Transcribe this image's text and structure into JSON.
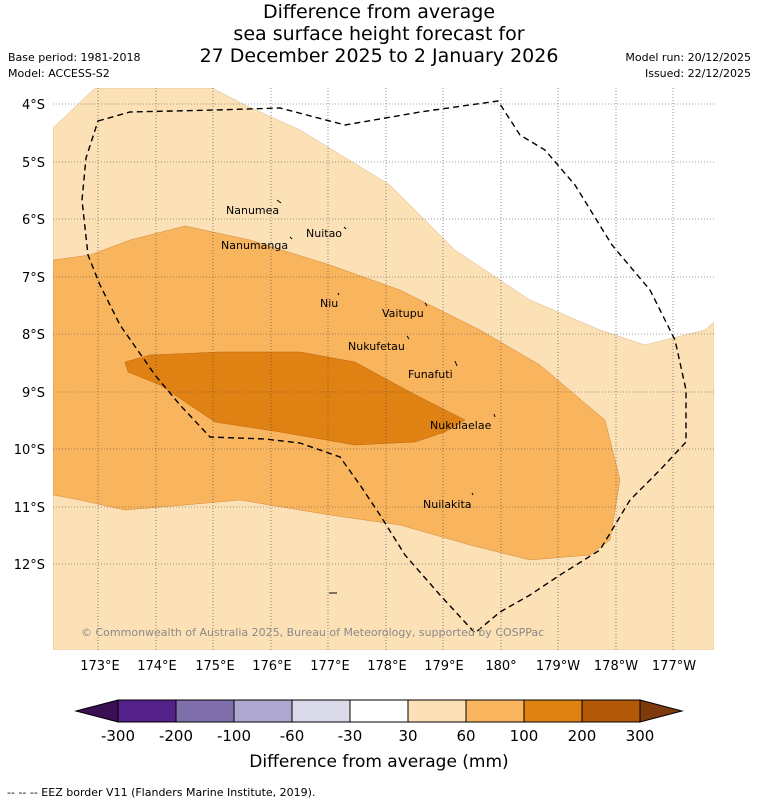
{
  "header": {
    "title_lines": [
      "Difference from average",
      "sea surface height forecast for",
      "27 December 2025 to 2 January 2026"
    ],
    "base_period": "Base period: 1981-2018",
    "model": "Model: ACCESS-S2",
    "model_run": "Model run: 20/12/2025",
    "issued": "Issued: 22/12/2025"
  },
  "map": {
    "lat_labels": [
      "4°S",
      "5°S",
      "6°S",
      "7°S",
      "8°S",
      "9°S",
      "10°S",
      "11°S",
      "12°S"
    ],
    "lon_labels": [
      "173°E",
      "174°E",
      "175°E",
      "176°E",
      "177°E",
      "178°E",
      "179°E",
      "180°",
      "179°W",
      "178°W",
      "177°W"
    ],
    "places": [
      "Nanumea",
      "Nuitao",
      "Nanumanga",
      "Niu",
      "Vaitupu",
      "Nukufetau",
      "Funafuti",
      "Nukulaelae",
      "Nuilakita"
    ],
    "copyright": "© Commonwealth of Australia 2025, Bureau of Meteorology, supported by COSPPac"
  },
  "colorbar": {
    "labels": [
      "-300",
      "-200",
      "-100",
      "-60",
      "-30",
      "30",
      "60",
      "100",
      "200",
      "300"
    ],
    "colors": [
      "#3b0f54",
      "#54218a",
      "#7f6fab",
      "#aea8d0",
      "#d9d9ea",
      "#ffffff",
      "#fde1b6",
      "#f9b45e",
      "#e08113",
      "#b25806",
      "#7e3a0a"
    ],
    "title": "Difference from average (mm)"
  },
  "footnote": "--  --  -- EEZ border V11 (Flanders Marine Institute, 2019)."
}
